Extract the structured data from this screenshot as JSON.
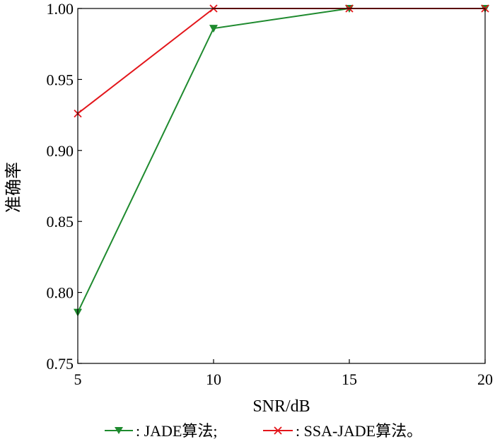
{
  "chart_data": {
    "type": "line",
    "title": "",
    "xlabel": "SNR/dB",
    "ylabel": "准确率",
    "x": [
      5,
      10,
      15,
      20
    ],
    "xlim": [
      5,
      20
    ],
    "ylim": [
      0.75,
      1.0
    ],
    "xticks": [
      "5",
      "10",
      "15",
      "20"
    ],
    "yticks": [
      "0.75",
      "0.80",
      "0.85",
      "0.90",
      "0.95",
      "1.00"
    ],
    "grid": false,
    "legend_position": "bottom",
    "series": [
      {
        "name": "JADE算法",
        "legend_label": ": JADE算法;",
        "values": [
          0.786,
          0.986,
          1.0,
          1.0
        ],
        "color": "#1e8a2e",
        "marker": "triangle-down"
      },
      {
        "name": "SSA-JADE算法",
        "legend_label": ": SSA-JADE算法。",
        "values": [
          0.926,
          1.0,
          1.0,
          1.0
        ],
        "color": "#e3161b",
        "marker": "x"
      }
    ]
  }
}
